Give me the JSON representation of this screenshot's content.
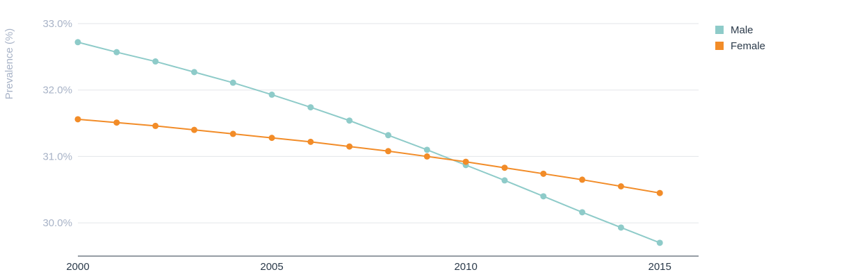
{
  "chart_data": {
    "type": "line",
    "title": "",
    "xlabel": "",
    "ylabel": "Prevalence (%)",
    "x": [
      2000,
      2001,
      2002,
      2003,
      2004,
      2005,
      2006,
      2007,
      2008,
      2009,
      2010,
      2011,
      2012,
      2013,
      2014,
      2015
    ],
    "x_ticks": [
      "2000",
      "2005",
      "2010",
      "2015"
    ],
    "x_tick_values": [
      2000,
      2005,
      2010,
      2015
    ],
    "y_ticks": [
      "33.0%",
      "32.0%",
      "31.0%",
      "30.0%"
    ],
    "y_tick_values": [
      33.0,
      32.0,
      31.0,
      30.0
    ],
    "xlim": [
      2000,
      2016
    ],
    "ylim": [
      29.5,
      33.0
    ],
    "grid": "horizontal",
    "legend_position": "top-right",
    "series": [
      {
        "name": "Male",
        "color": "#8ecbc9",
        "values": [
          32.72,
          32.57,
          32.43,
          32.27,
          32.11,
          31.93,
          31.74,
          31.54,
          31.32,
          31.1,
          30.87,
          30.64,
          30.4,
          30.16,
          29.93,
          29.7
        ]
      },
      {
        "name": "Female",
        "color": "#f28c28",
        "values": [
          31.56,
          31.51,
          31.46,
          31.4,
          31.34,
          31.28,
          31.22,
          31.15,
          31.08,
          31.0,
          30.92,
          30.83,
          30.74,
          30.65,
          30.55,
          30.45
        ]
      }
    ]
  }
}
